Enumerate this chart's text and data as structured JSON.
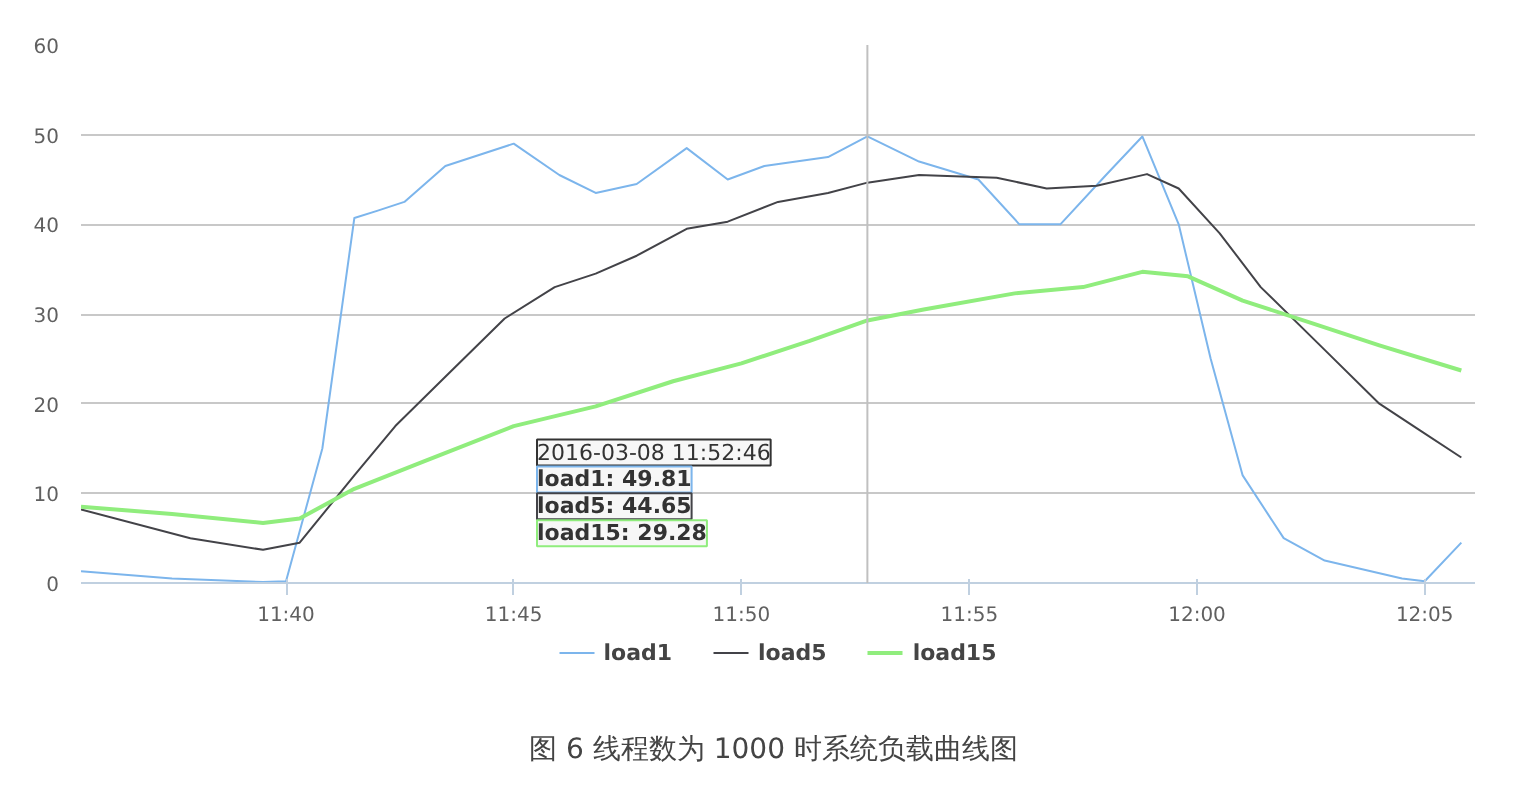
{
  "chart_data": {
    "type": "line",
    "title": "图 6  线程数为 1000 时系统负载曲线图",
    "xlim": [
      11.5917,
      12.1017
    ],
    "ylim": [
      0,
      60
    ],
    "xticks": [
      {
        "value": 11.6667,
        "label": "11:40"
      },
      {
        "value": 11.75,
        "label": "11:45"
      },
      {
        "value": 11.8333,
        "label": "11:50"
      },
      {
        "value": 11.9167,
        "label": "11:55"
      },
      {
        "value": 12,
        "label": "12:00"
      },
      {
        "value": 12.0833,
        "label": "12:05"
      }
    ],
    "yticks": [
      0,
      10,
      20,
      30,
      40,
      50,
      60
    ],
    "grid": "y",
    "legend": "bottom",
    "marker": "none",
    "line_style": "solid",
    "ref_lines": [
      {
        "axis": "x",
        "value": 11.8794,
        "color": "#c0c0c0"
      }
    ],
    "annotations": [
      "2016-03-08 11:52:46",
      "load1: 49.81",
      "load5: 44.65",
      "load15: 29.28"
    ],
    "series": [
      {
        "name": "load1",
        "color": "#7cb5ec",
        "x": [
          11.5917,
          11.625,
          11.6583,
          11.6667,
          11.68,
          11.6917,
          11.7,
          11.71,
          11.725,
          11.75,
          11.7667,
          11.78,
          11.795,
          11.8133,
          11.8283,
          11.8417,
          11.865,
          11.8794,
          11.8983,
          11.92,
          11.935,
          11.95,
          11.9667,
          11.98,
          11.9933,
          12.005,
          12.0167,
          12.0317,
          12.0467,
          12.075,
          12.0833,
          12.0967
        ],
        "values": [
          1.3,
          0.5,
          0.1,
          0.2,
          15,
          40.7,
          41.5,
          42.5,
          46.5,
          49,
          45.5,
          43.5,
          44.5,
          48.5,
          45,
          46.5,
          47.5,
          49.81,
          47,
          45,
          40,
          40,
          45.5,
          49.8,
          40,
          25,
          12,
          5,
          2.5,
          0.5,
          0.2,
          4.5
        ]
      },
      {
        "name": "load5",
        "color": "#434348",
        "x": [
          11.5917,
          11.6317,
          11.6583,
          11.6717,
          11.6917,
          11.7067,
          11.725,
          11.7467,
          11.765,
          11.78,
          11.795,
          11.8133,
          11.8283,
          11.8467,
          11.865,
          11.8794,
          11.8983,
          11.9267,
          11.945,
          11.9633,
          11.9817,
          11.9933,
          12.0083,
          12.0233,
          12.0467,
          12.0667,
          12.0817,
          12.0967
        ],
        "values": [
          8.2,
          5,
          3.7,
          4.5,
          12,
          17.5,
          23,
          29.5,
          33,
          34.5,
          36.5,
          39.5,
          40.3,
          42.5,
          43.5,
          44.65,
          45.5,
          45.2,
          44,
          44.3,
          45.6,
          44,
          39,
          33,
          26,
          20,
          17,
          14
        ]
      },
      {
        "name": "load15",
        "color": "#90ed7d",
        "x": [
          11.5917,
          11.625,
          11.6583,
          11.6717,
          11.6917,
          11.7167,
          11.75,
          11.78,
          11.8083,
          11.8333,
          11.8583,
          11.8794,
          11.9,
          11.9333,
          11.9583,
          11.98,
          11.9967,
          12.0167,
          12.0417,
          12.0667,
          12.0967
        ],
        "values": [
          8.5,
          7.7,
          6.7,
          7.2,
          10.5,
          13.5,
          17.5,
          19.7,
          22.5,
          24.5,
          27,
          29.28,
          30.5,
          32.3,
          33,
          34.7,
          34.2,
          31.5,
          29,
          26.5,
          23.7
        ]
      }
    ]
  }
}
